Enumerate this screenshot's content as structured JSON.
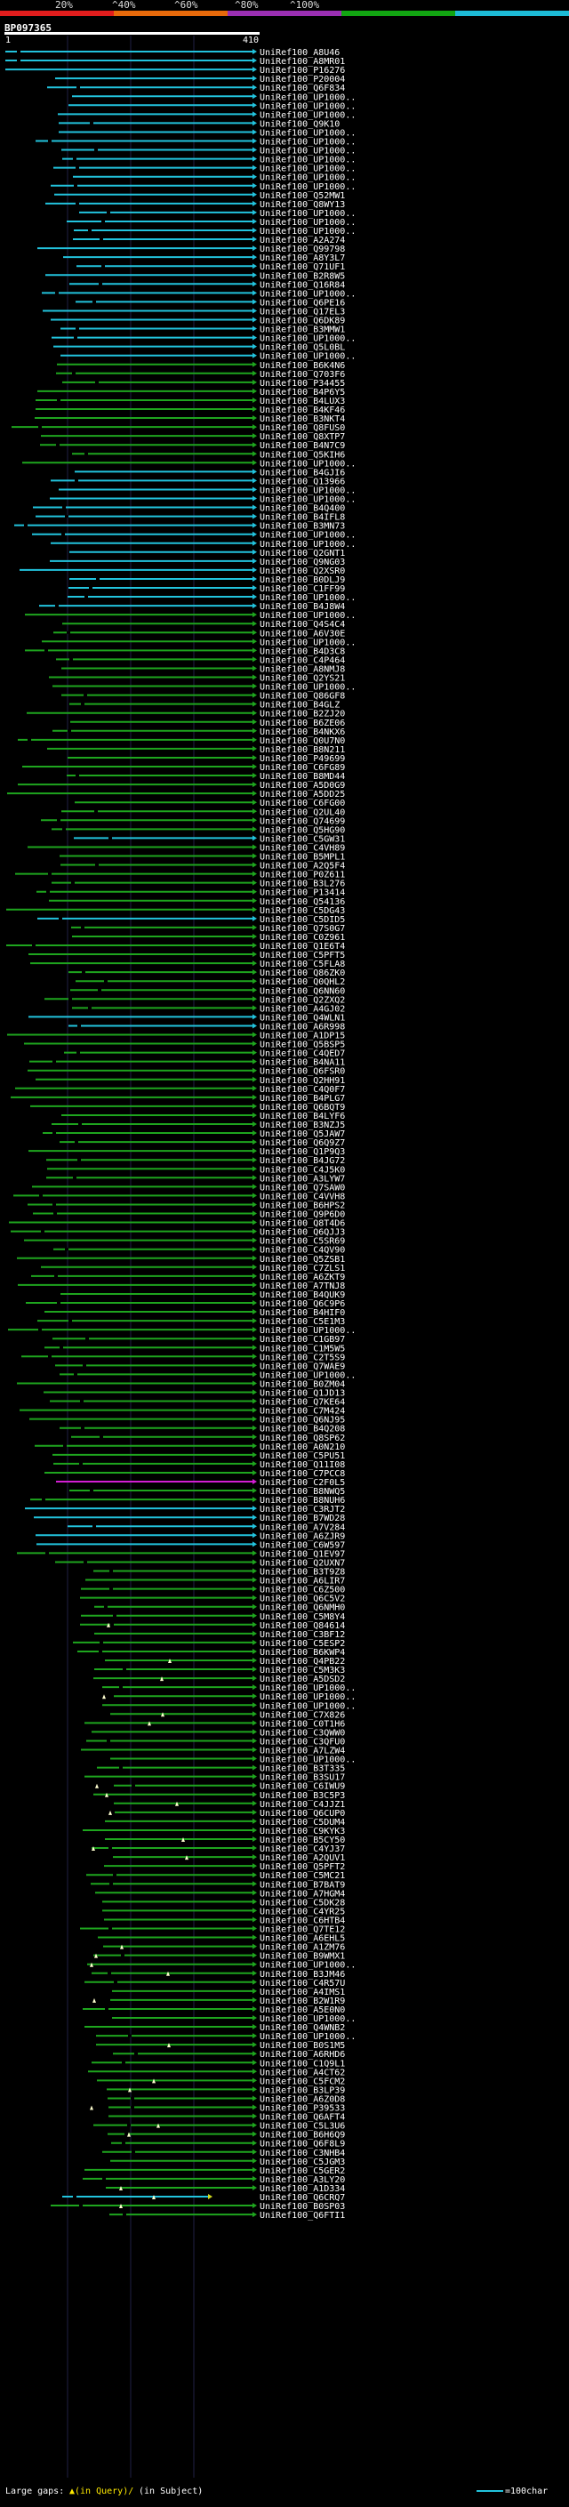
{
  "header": {
    "percent_labels": [
      "20%",
      "^40%",
      "^60%",
      "^80%",
      "^100%"
    ],
    "colors": [
      "#e11d1d",
      "#e86a0b",
      "#9b2fb3",
      "#12a512",
      "#1dbbd6"
    ],
    "query_id": "BP097365",
    "axis_start": "1",
    "axis_end": "410"
  },
  "hits": [
    "UniRef100_A8U46",
    "UniRef100_A8MR01",
    "UniRef100_P16276",
    "UniRef100_P20004",
    "UniRef100_Q6F834",
    "UniRef100_UP1000..",
    "UniRef100_UP1000..",
    "UniRef100_UP1000..",
    "UniRef100_Q9K10",
    "UniRef100_UP1000..",
    "UniRef100_UP1000..",
    "UniRef100_UP1000..",
    "UniRef100_UP1000..",
    "UniRef100_UP1000..",
    "UniRef100_UP1000..",
    "UniRef100_UP1000..",
    "UniRef100_Q52MW1",
    "UniRef100_Q8WY13",
    "UniRef100_UP1000..",
    "UniRef100_UP1000..",
    "UniRef100_UP1000..",
    "UniRef100_A2A274",
    "UniRef100_Q99798",
    "UniRef100_A8Y3L7",
    "UniRef100_Q71UF1",
    "UniRef100_B2R8W5",
    "UniRef100_Q16R84",
    "UniRef100_UP1000..",
    "UniRef100_Q6PE16",
    "UniRef100_Q17EL3",
    "UniRef100_Q6DK89",
    "UniRef100_B3MMW1",
    "UniRef100_UP1000..",
    "UniRef100_Q5L0BL",
    "UniRef100_UP1000..",
    "UniRef100_B6K4N6",
    "UniRef100_Q703F6",
    "UniRef100_P34455",
    "UniRef100_B4P6Y5",
    "UniRef100_B4LUX3",
    "UniRef100_B4KF46",
    "UniRef100_B3NKT4",
    "UniRef100_Q8FUS0",
    "UniRef100_Q8XTP7",
    "UniRef100_B4N7C9",
    "UniRef100_Q5KIH6",
    "UniRef100_UP1000..",
    "UniRef100_B4GJI6",
    "UniRef100_Q13966",
    "UniRef100_UP1000..",
    "UniRef100_UP1000..",
    "UniRef100_B4Q400",
    "UniRef100_B4IFL8",
    "UniRef100_B3MN73",
    "UniRef100_UP1000..",
    "UniRef100_UP1000..",
    "UniRef100_Q2GNT1",
    "UniRef100_Q9NG03",
    "UniRef100_Q2XSR0",
    "UniRef100_B0DLJ9",
    "UniRef100_C1FF99",
    "UniRef100_UP1000..",
    "UniRef100_B4J8W4",
    "UniRef100_UP1000..",
    "UniRef100_Q4S4C4",
    "UniRef100_A6V30E",
    "UniRef100_UP1000..",
    "UniRef100_B4D3C8",
    "UniRef100_C4P464",
    "UniRef100_A8NMJ8",
    "UniRef100_Q2YS21",
    "UniRef100_UP1000..",
    "UniRef100_Q86GF8",
    "UniRef100_B4GLZ",
    "UniRef100_B2ZJ20",
    "UniRef100_B6ZE06",
    "UniRef100_B4NKX6",
    "UniRef100_Q0U7N0",
    "UniRef100_B8N211",
    "UniRef100_P49699",
    "UniRef100_C6FG89",
    "UniRef100_B8MD44",
    "UniRef100_A5D0G9",
    "UniRef100_A5DD25",
    "UniRef100_C6FG00",
    "UniRef100_Q2UL40",
    "UniRef100_Q74699",
    "UniRef100_Q5HG90",
    "UniRef100_C5GW31",
    "UniRef100_C4VH89",
    "UniRef100_B5MPL1",
    "UniRef100_A2Q5F4",
    "UniRef100_P0Z611",
    "UniRef100_B3L276",
    "UniRef100_P13414",
    "UniRef100_Q54136",
    "UniRef100_C5DG43",
    "UniRef100_C5DID5",
    "UniRef100_Q7S0G7",
    "UniRef100_C0Z961",
    "UniRef100_Q1E6T4",
    "UniRef100_C5PFT5",
    "UniRef100_C5FLA8",
    "UniRef100_Q86ZK0",
    "UniRef100_Q0QHL2",
    "UniRef100_Q6NN60",
    "UniRef100_Q2ZXQ2",
    "UniRef100_A4GJ02",
    "UniRef100_Q4WLN1",
    "UniRef100_A6R998",
    "UniRef100_A1DP15",
    "UniRef100_Q5BSP5",
    "UniRef100_C4QED7",
    "UniRef100_B4NA11",
    "UniRef100_Q6FSR0",
    "UniRef100_Q2HH91",
    "UniRef100_C4Q0F7",
    "UniRef100_B4PLG7",
    "UniRef100_Q6BQT9",
    "UniRef100_B4LYF6",
    "UniRef100_B3NZJ5",
    "UniRef100_Q5JAW7",
    "UniRef100_Q6Q9Z7",
    "UniRef100_Q1P9Q3",
    "UniRef100_B4JG72",
    "UniRef100_C4J5K0",
    "UniRef100_A3LYW7",
    "UniRef100_Q7SAW0",
    "UniRef100_C4VVH8",
    "UniRef100_B6HPS2",
    "UniRef100_Q9P6D0",
    "UniRef100_Q8T4D6",
    "UniRef100_Q6QJJ3",
    "UniRef100_C5SR69",
    "UniRef100_C4QV90",
    "UniRef100_Q5ZSB1",
    "UniRef100_C7ZLS1",
    "UniRef100_A6ZKT9",
    "UniRef100_A7TNJ8",
    "UniRef100_B4QUK9",
    "UniRef100_Q6C9P6",
    "UniRef100_B4HIF0",
    "UniRef100_C5E1M3",
    "UniRef100_UP1000..",
    "UniRef100_C1GB97",
    "UniRef100_C1M5W5",
    "UniRef100_C2T5S9",
    "UniRef100_Q7WAE9",
    "UniRef100_UP1000..",
    "UniRef100_B0ZM04",
    "UniRef100_Q1JD13",
    "UniRef100_Q7KE64",
    "UniRef100_C7M424",
    "UniRef100_Q6NJ95",
    "UniRef100_B4Q208",
    "UniRef100_Q8SP62",
    "UniRef100_A0N210",
    "UniRef100_C5PU51",
    "UniRef100_Q11I08",
    "UniRef100_C7PCC8",
    "UniRef100_C2F0L5",
    "UniRef100_B8NWQ5",
    "UniRef100_B8NUH6",
    "UniRef100_C3RJT2",
    "UniRef100_B7WD28",
    "UniRef100_A7V284",
    "UniRef100_A6ZJR9",
    "UniRef100_C6W597",
    "UniRef100_Q1EV97",
    "UniRef100_Q2UXN7",
    "UniRef100_B3T9Z8",
    "UniRef100_A6LIR7",
    "UniRef100_C6Z500",
    "UniRef100_Q6C5V2",
    "UniRef100_Q6NMH0",
    "UniRef100_C5M8Y4",
    "UniRef100_Q84614",
    "UniRef100_C3BF12",
    "UniRef100_C5ESP2",
    "UniRef100_B6KWP4",
    "UniRef100_Q4PB22",
    "UniRef100_C5M3K3",
    "UniRef100_A5DSD2",
    "UniRef100_UP1000..",
    "UniRef100_UP1000..",
    "UniRef100_UP1000..",
    "UniRef100_C7X826",
    "UniRef100_C0T1H6",
    "UniRef100_C3QWW0",
    "UniRef100_C3QFU0",
    "UniRef100_A7LZW4",
    "UniRef100_UP1000..",
    "UniRef100_B3T335",
    "UniRef100_B3SU17",
    "UniRef100_C6IWU9",
    "UniRef100_B3C5P3",
    "UniRef100_C4JJZ1",
    "UniRef100_Q6CUP0",
    "UniRef100_C5DUM4",
    "UniRef100_C9KYK3",
    "UniRef100_B5CY50",
    "UniRef100_C4YJ37",
    "UniRef100_A2QUV1",
    "UniRef100_Q5PFT2",
    "UniRef100_C5MC21",
    "UniRef100_B7BAT9",
    "UniRef100_A7HGM4",
    "UniRef100_C5DK28",
    "UniRef100_C4YR25",
    "UniRef100_C6HTB4",
    "UniRef100_Q7TE12",
    "UniRef100_A6EHL5",
    "UniRef100_A1ZM76",
    "UniRef100_B9WMX1",
    "UniRef100_UP1000..",
    "UniRef100_B3JM46",
    "UniRef100_C4R57U",
    "UniRef100_A4IMS1",
    "UniRef100_B2W1R9",
    "UniRef100_A5E0N0",
    "UniRef100_UP1000..",
    "UniRef100_Q4WNB2",
    "UniRef100_UP1000..",
    "UniRef100_B0S1M5",
    "UniRef100_A6RHD6",
    "UniRef100_C1Q9L1",
    "UniRef100_A4CT62",
    "UniRef100_C5FCM2",
    "UniRef100_B3LP39",
    "UniRef100_A6Z0D8",
    "UniRef100_P39533",
    "UniRef100_Q6AFT4",
    "UniRef100_C5L3U6",
    "UniRef100_B6H6Q9",
    "UniRef100_Q6F8L9",
    "UniRef100_C3NHB4",
    "UniRef100_C5JGM3",
    "UniRef100_C5GER2",
    "UniRef100_A3LY20",
    "UniRef100_A1D334",
    "UniRef100_Q6CRQ7",
    "UniRef100_B0SP03",
    "UniRef100_Q6FTI1"
  ],
  "legend": {
    "gaps_label": "Large gaps:",
    "gaps_query": "▲(in Query)/",
    "gaps_subject": "(in Subject)",
    "scale_label": "=100char"
  }
}
